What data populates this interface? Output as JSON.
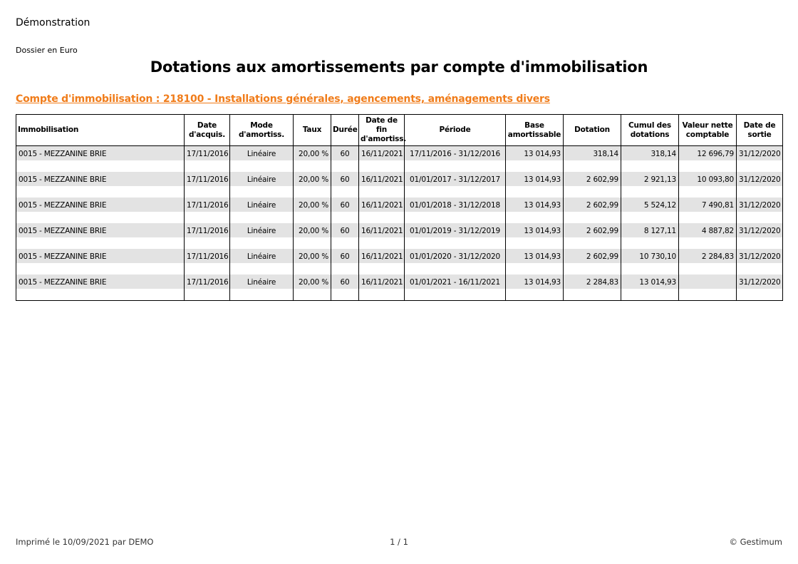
{
  "header": {
    "company": "Démonstration",
    "dossier": "Dossier en Euro",
    "title": "Dotations aux amortissements par compte d'immobilisation",
    "account": "Compte d'immobilisation : 218100 - Installations générales, agencements, aménagements divers"
  },
  "table": {
    "columns": {
      "immobilisation": "Immobilisation",
      "date_acquis_1": "Date",
      "date_acquis_2": "d'acquis.",
      "mode_1": "Mode",
      "mode_2": "d'amortiss.",
      "taux": "Taux",
      "duree": "Durée",
      "date_fin_1": "Date de fin",
      "date_fin_2": "d'amortiss.",
      "periode": "Période",
      "base_1": "Base",
      "base_2": "amortissable",
      "dotation": "Dotation",
      "cumul_1": "Cumul des",
      "cumul_2": "dotations",
      "vnc_1": "Valeur nette",
      "vnc_2": "comptable",
      "sortie_1": "Date de",
      "sortie_2": "sortie"
    },
    "rows": [
      {
        "immo": "0015 - MEZZANINE BRIE",
        "date_acquis": "17/11/2016",
        "mode": "Linéaire",
        "taux": "20,00 %",
        "duree": "60",
        "date_fin": "16/11/2021",
        "periode": "17/11/2016 - 31/12/2016",
        "base": "13 014,93",
        "dotation": "318,14",
        "cumul": "318,14",
        "vnc": "12 696,79",
        "sortie": "31/12/2020"
      },
      {
        "immo": "0015 - MEZZANINE BRIE",
        "date_acquis": "17/11/2016",
        "mode": "Linéaire",
        "taux": "20,00 %",
        "duree": "60",
        "date_fin": "16/11/2021",
        "periode": "01/01/2017 - 31/12/2017",
        "base": "13 014,93",
        "dotation": "2 602,99",
        "cumul": "2 921,13",
        "vnc": "10 093,80",
        "sortie": "31/12/2020"
      },
      {
        "immo": "0015 - MEZZANINE BRIE",
        "date_acquis": "17/11/2016",
        "mode": "Linéaire",
        "taux": "20,00 %",
        "duree": "60",
        "date_fin": "16/11/2021",
        "periode": "01/01/2018 - 31/12/2018",
        "base": "13 014,93",
        "dotation": "2 602,99",
        "cumul": "5 524,12",
        "vnc": "7 490,81",
        "sortie": "31/12/2020"
      },
      {
        "immo": "0015 - MEZZANINE BRIE",
        "date_acquis": "17/11/2016",
        "mode": "Linéaire",
        "taux": "20,00 %",
        "duree": "60",
        "date_fin": "16/11/2021",
        "periode": "01/01/2019 - 31/12/2019",
        "base": "13 014,93",
        "dotation": "2 602,99",
        "cumul": "8 127,11",
        "vnc": "4 887,82",
        "sortie": "31/12/2020"
      },
      {
        "immo": "0015 - MEZZANINE BRIE",
        "date_acquis": "17/11/2016",
        "mode": "Linéaire",
        "taux": "20,00 %",
        "duree": "60",
        "date_fin": "16/11/2021",
        "periode": "01/01/2020 - 31/12/2020",
        "base": "13 014,93",
        "dotation": "2 602,99",
        "cumul": "10 730,10",
        "vnc": "2 284,83",
        "sortie": "31/12/2020"
      },
      {
        "immo": "0015 - MEZZANINE BRIE",
        "date_acquis": "17/11/2016",
        "mode": "Linéaire",
        "taux": "20,00 %",
        "duree": "60",
        "date_fin": "16/11/2021",
        "periode": "01/01/2021 - 16/11/2021",
        "base": "13 014,93",
        "dotation": "2 284,83",
        "cumul": "13 014,93",
        "vnc": "",
        "sortie": "31/12/2020"
      }
    ]
  },
  "footer": {
    "printed": "Imprimé le 10/09/2021 par DEMO",
    "page": "1 / 1",
    "copyright": "© Gestimum"
  }
}
